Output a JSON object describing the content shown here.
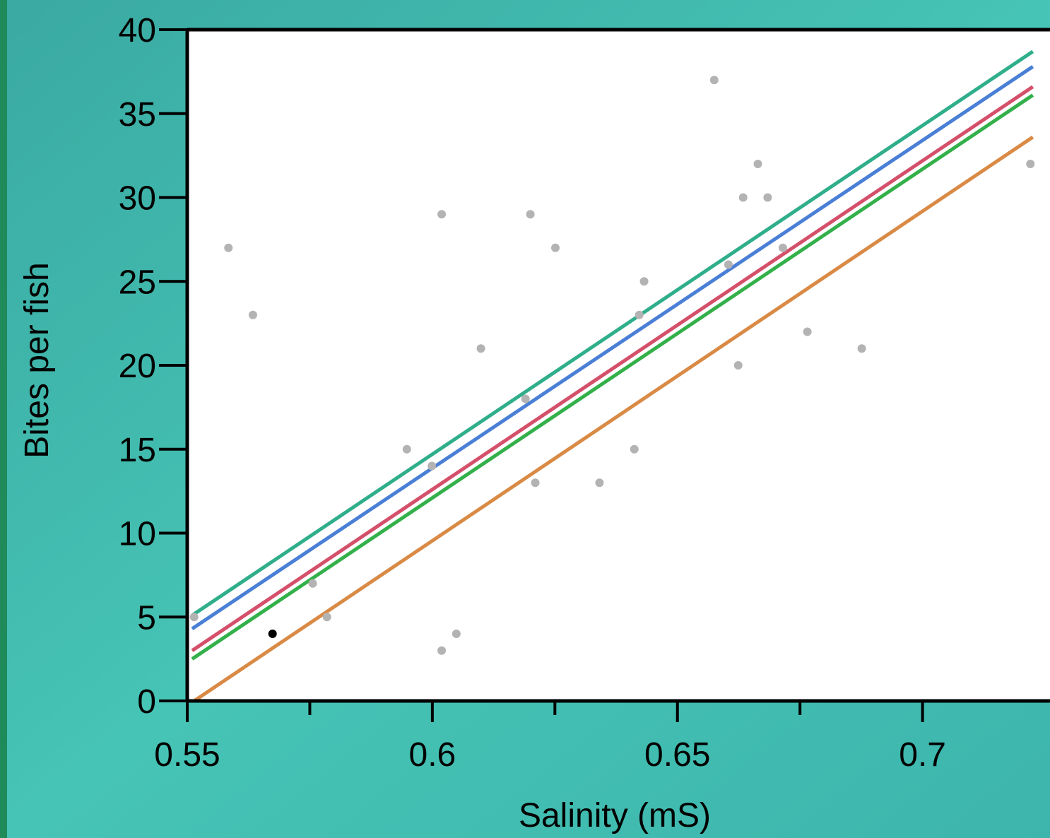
{
  "chart_data": {
    "type": "scatter",
    "x_label": "Salinity (mS)",
    "y_label": "Bites per fish",
    "xlim": [
      0.55,
      0.726
    ],
    "xticks": [
      0.55,
      0.6,
      0.65,
      0.7
    ],
    "xminor_ticks": [
      0.575,
      0.625,
      0.675
    ],
    "ylim": [
      0,
      40
    ],
    "yticks": [
      0,
      5,
      10,
      15,
      20,
      25,
      30,
      35,
      40
    ],
    "series": [
      {
        "color": "#b3b3b3",
        "x": [
          0.5514,
          0.5584,
          0.5634,
          0.5756,
          0.5785,
          0.5948,
          0.5999,
          0.6019,
          0.6019,
          0.6049,
          0.6099,
          0.619,
          0.62,
          0.621,
          0.6251,
          0.6341,
          0.6412,
          0.6422,
          0.6432,
          0.6575,
          0.6604,
          0.6624,
          0.6634,
          0.6664,
          0.6684,
          0.6715,
          0.6765,
          0.6876,
          0.722
        ],
        "values": [
          5,
          27,
          23,
          7,
          5,
          15,
          14,
          29,
          3,
          4,
          21,
          18,
          29,
          13,
          27,
          13,
          15,
          23,
          25,
          37,
          26,
          20,
          30,
          32,
          30,
          27,
          22,
          21,
          32
        ]
      },
      {
        "color": "#000000",
        "x": [
          0.5674
        ],
        "values": [
          4
        ]
      }
    ],
    "fit_lines": [
      {
        "color": "#2fae8a",
        "x": [
          0.551,
          0.7225
        ],
        "values": [
          5.1,
          38.7
        ]
      },
      {
        "color": "#4a7fd6",
        "x": [
          0.551,
          0.7225
        ],
        "values": [
          4.3,
          37.8
        ]
      },
      {
        "color": "#d4506a",
        "x": [
          0.551,
          0.7225
        ],
        "values": [
          3.0,
          36.6
        ]
      },
      {
        "color": "#33b04a",
        "x": [
          0.551,
          0.7225
        ],
        "values": [
          2.5,
          36.1
        ]
      },
      {
        "color": "#d98a45",
        "x": [
          0.5514,
          0.7225
        ],
        "values": [
          0,
          33.6
        ]
      }
    ]
  }
}
